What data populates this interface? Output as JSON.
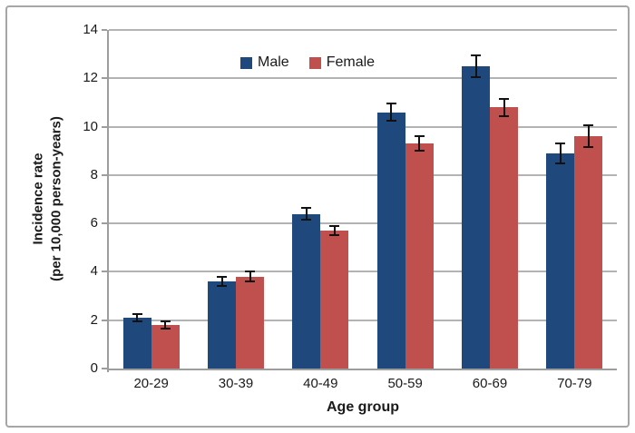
{
  "chart_data": {
    "type": "bar",
    "title": "",
    "categories": [
      "20-29",
      "30-39",
      "40-49",
      "50-59",
      "60-69",
      "70-79"
    ],
    "series": [
      {
        "name": "Male",
        "color": "#1f497d",
        "values": [
          2.1,
          3.6,
          6.4,
          10.6,
          12.5,
          8.9
        ],
        "errors": [
          0.15,
          0.2,
          0.25,
          0.35,
          0.45,
          0.4
        ]
      },
      {
        "name": "Female",
        "color": "#c0504d",
        "values": [
          1.8,
          3.8,
          5.7,
          9.3,
          10.8,
          9.6
        ],
        "errors": [
          0.15,
          0.2,
          0.2,
          0.3,
          0.35,
          0.45
        ]
      }
    ],
    "xlabel": "Age group",
    "ylabel_line1": "Incidence rate",
    "ylabel_line2": "(per 10,000 person-years)",
    "ylim": [
      0,
      14
    ],
    "yticks": [
      0,
      2,
      4,
      6,
      8,
      10,
      12,
      14
    ],
    "grid": true,
    "legend_position": "top-inside-left",
    "error_bars": true,
    "colors": {
      "male": "#1f497d",
      "female": "#c0504d",
      "gridline": "#b3b3b3",
      "axis": "#9d9d9d",
      "error_bar": "#111111",
      "border": "#a6a6a6"
    }
  }
}
